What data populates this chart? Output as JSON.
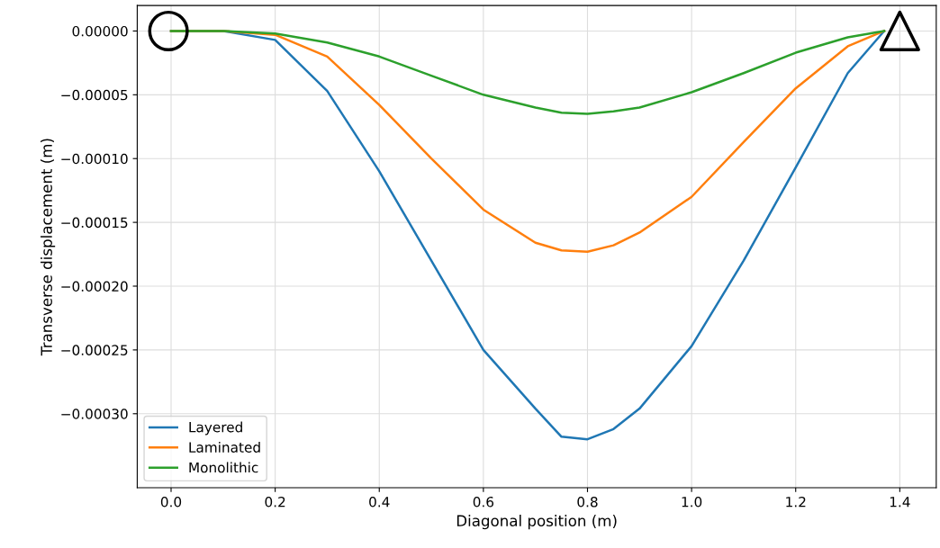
{
  "chart_data": {
    "type": "line",
    "xlabel": "Diagonal position (m)",
    "ylabel": "Transverse displacement (m)",
    "xlim": [
      -0.065,
      1.47
    ],
    "ylim": [
      -0.000358,
      2e-05
    ],
    "xticks": [
      {
        "value": 0,
        "label": "0.0"
      },
      0.2,
      0.4,
      0.6,
      0.8,
      {
        "value": 1,
        "label": "1.0"
      },
      1.2,
      1.4
    ],
    "yticks": [
      {
        "value": 0,
        "label": "0.00000"
      },
      {
        "value": -5e-05,
        "label": "−0.00005"
      },
      {
        "value": -0.0001,
        "label": "−0.00010"
      },
      {
        "value": -0.00015,
        "label": "−0.00015"
      },
      {
        "value": -0.0002,
        "label": "−0.00020"
      },
      {
        "value": -0.00025,
        "label": "−0.00025"
      },
      {
        "value": -0.0003,
        "label": "−0.00030"
      }
    ],
    "grid": true,
    "legend": "bottom left",
    "marker": "none",
    "x": [
      0,
      0.1,
      0.2,
      0.3,
      0.4,
      0.5,
      0.6,
      0.7,
      0.75,
      0.8,
      0.85,
      0.9,
      1.0,
      1.1,
      1.2,
      1.3,
      1.37
    ],
    "series": [
      {
        "name": "Layered",
        "color": "#1f77b4",
        "values": [
          0,
          0,
          -7e-06,
          -4.7e-05,
          -0.00011,
          -0.00018,
          -0.00025,
          -0.000296,
          -0.000318,
          -0.00032,
          -0.000312,
          -0.000296,
          -0.000247,
          -0.00018,
          -0.000107,
          -3.3e-05,
          0
        ]
      },
      {
        "name": "Laminated",
        "color": "#ff7f0e",
        "values": [
          0,
          0,
          -3e-06,
          -2e-05,
          -5.8e-05,
          -0.0001,
          -0.00014,
          -0.000166,
          -0.000172,
          -0.000173,
          -0.000168,
          -0.000158,
          -0.00013,
          -8.7e-05,
          -4.5e-05,
          -1.2e-05,
          0
        ]
      },
      {
        "name": "Monolithic",
        "color": "#2ca02c",
        "values": [
          0,
          0,
          -2e-06,
          -9e-06,
          -2e-05,
          -3.5e-05,
          -5e-05,
          -6e-05,
          -6.4e-05,
          -6.5e-05,
          -6.3e-05,
          -6e-05,
          -4.8e-05,
          -3.3e-05,
          -1.7e-05,
          -5e-06,
          0
        ]
      },
      {
        "type": "scatter",
        "marker": "circle",
        "color": "#000000",
        "x": [
          -0.005
        ],
        "values": [
          0
        ]
      },
      {
        "type": "scatter",
        "marker": "triangle",
        "color": "#000000",
        "x": [
          1.4
        ],
        "values": [
          0
        ]
      }
    ]
  }
}
